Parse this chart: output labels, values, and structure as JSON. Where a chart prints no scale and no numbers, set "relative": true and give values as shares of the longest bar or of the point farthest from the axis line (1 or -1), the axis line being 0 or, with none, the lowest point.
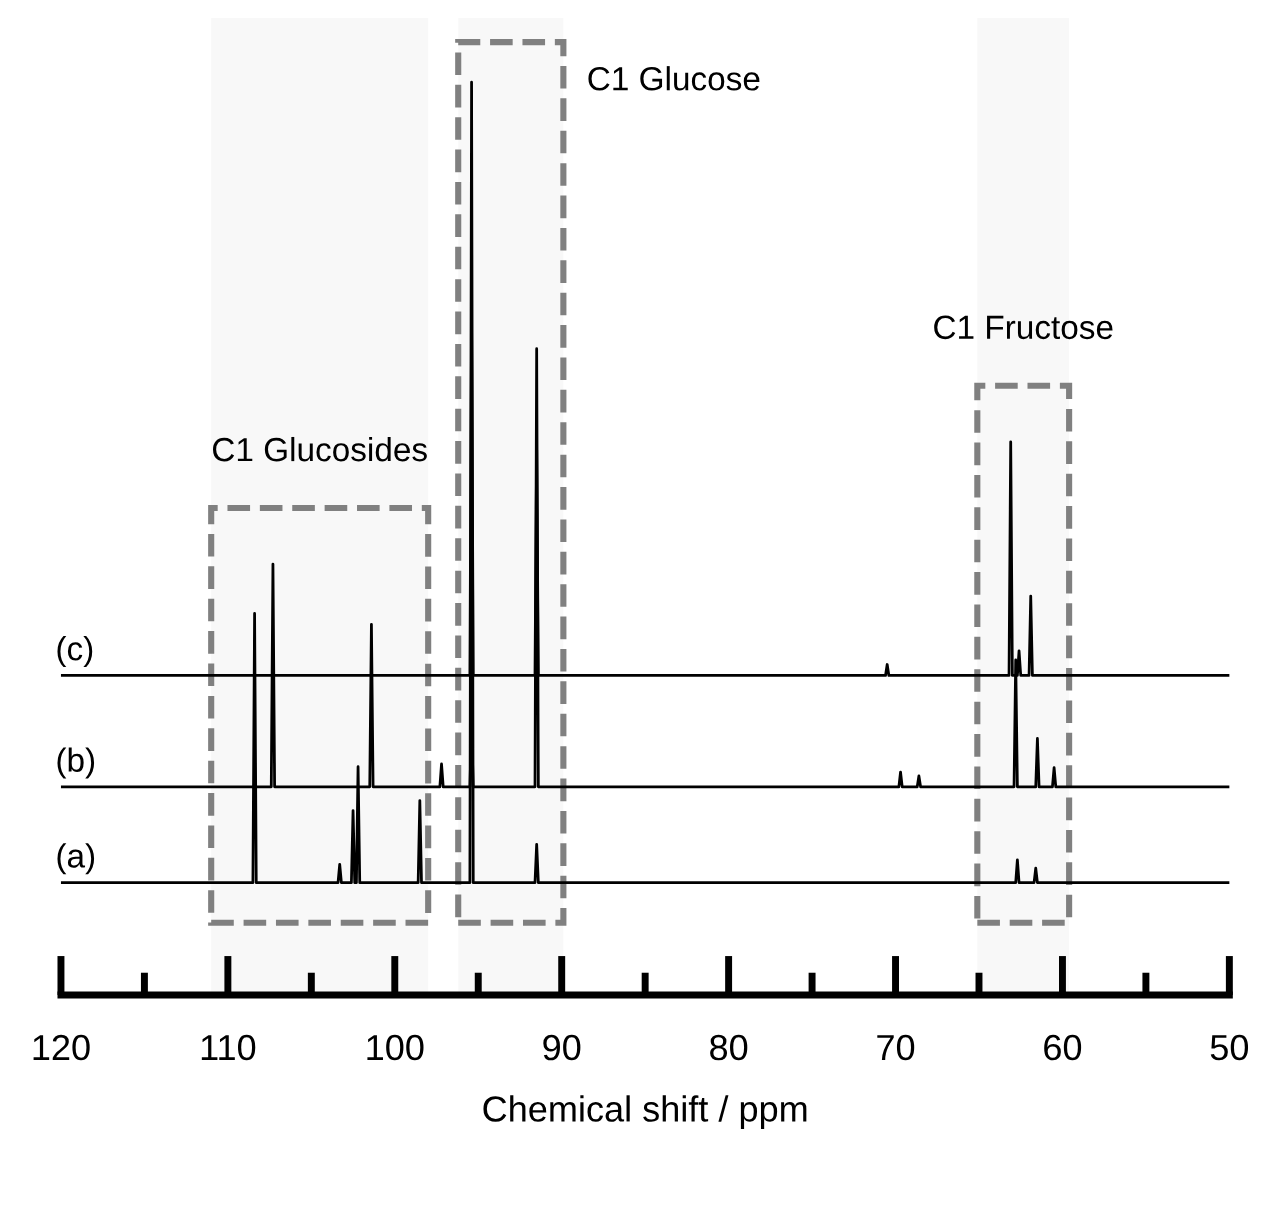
{
  "chart_data": {
    "type": "line",
    "relative": true,
    "xlabel": "Chemical shift / ppm",
    "xlim": [
      120,
      50
    ],
    "xticks": [
      120,
      {
        "value": 115,
        "label": null
      },
      110,
      {
        "value": 105,
        "label": null
      },
      100,
      {
        "value": 95,
        "label": null
      },
      90,
      {
        "value": 85,
        "label": null
      },
      80,
      {
        "value": 75,
        "label": null
      },
      70,
      {
        "value": 65,
        "label": null
      },
      60,
      {
        "value": 55,
        "label": null
      },
      50
    ],
    "legend": false,
    "grid": false,
    "marker": "none",
    "line_style": "solid",
    "series": [
      {
        "name": "(a)",
        "color": "#000000",
        "x": [
          120,
          108.5,
          108.4,
          108.3,
          103.4,
          103.3,
          103.2,
          102.6,
          102.5,
          102.4,
          102.3,
          102.2,
          102.1,
          98.6,
          98.5,
          98.4,
          95.5,
          95.4,
          95.3,
          91.6,
          91.5,
          91.4,
          62.8,
          62.7,
          62.6,
          61.7,
          61.6,
          61.5,
          50
        ],
        "values": [
          0.123,
          0.123,
          0.418,
          0.123,
          0.123,
          0.143,
          0.123,
          0.123,
          0.202,
          0.123,
          0.123,
          0.25,
          0.123,
          0.123,
          0.213,
          0.123,
          0.123,
          1.0,
          0.123,
          0.123,
          0.165,
          0.123,
          0.123,
          0.148,
          0.123,
          0.123,
          0.139,
          0.123,
          0.123
        ]
      },
      {
        "name": "(b)",
        "color": "#000000",
        "x": [
          120,
          107.4,
          107.3,
          107.2,
          101.5,
          101.4,
          101.3,
          97.3,
          97.2,
          97.1,
          95.5,
          95.4,
          95.3,
          91.6,
          91.5,
          91.4,
          69.8,
          69.7,
          69.6,
          68.7,
          68.6,
          68.5,
          62.9,
          62.8,
          62.7,
          61.6,
          61.5,
          61.4,
          60.6,
          60.5,
          60.4,
          50
        ],
        "values": [
          0.228,
          0.228,
          0.472,
          0.228,
          0.228,
          0.406,
          0.228,
          0.228,
          0.253,
          0.228,
          0.228,
          0.294,
          0.228,
          0.228,
          0.708,
          0.228,
          0.228,
          0.244,
          0.228,
          0.228,
          0.24,
          0.228,
          0.228,
          0.367,
          0.228,
          0.228,
          0.281,
          0.228,
          0.228,
          0.249,
          0.228,
          0.228
        ]
      },
      {
        "name": "(c)",
        "color": "#000000",
        "x": [
          120,
          95.5,
          95.4,
          95.3,
          91.6,
          91.5,
          91.4,
          70.6,
          70.5,
          70.4,
          63.2,
          63.1,
          63.0,
          62.7,
          62.6,
          62.5,
          62.0,
          61.9,
          61.8,
          50
        ],
        "values": [
          0.35,
          0.35,
          0.736,
          0.35,
          0.35,
          0.597,
          0.35,
          0.35,
          0.362,
          0.35,
          0.35,
          0.606,
          0.35,
          0.35,
          0.377,
          0.35,
          0.35,
          0.437,
          0.35,
          0.35
        ]
      }
    ],
    "bands": [
      {
        "axis": "x",
        "from": 111.0,
        "to": 98.0,
        "label": "C1 Glucosides",
        "color": "#808080"
      },
      {
        "axis": "x",
        "from": 96.2,
        "to": 89.9,
        "label": "C1 Glucose",
        "color": "#808080"
      },
      {
        "axis": "x",
        "from": 65.1,
        "to": 59.6,
        "label": "C1 Fructose",
        "color": "#808080"
      }
    ]
  }
}
